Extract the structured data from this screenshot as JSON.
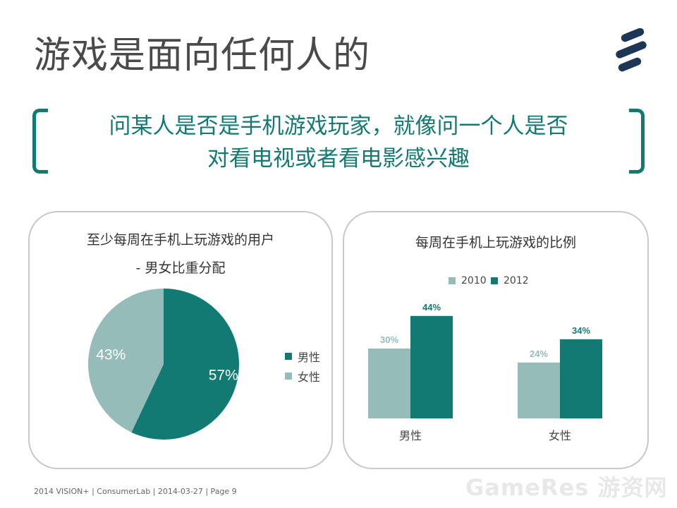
{
  "title": "游戏是面向任何人的",
  "quote": {
    "line1": "问某人是否是手机游戏玩家，就像问一个人是否",
    "line2": "对看电视或者看电影感兴趣"
  },
  "colors": {
    "teal": "#137a73",
    "light": "#95bcb8",
    "title_grey": "#4a4a4a"
  },
  "left_panel": {
    "title_line1": "至少每周在手机上玩游戏的用户",
    "title_line2": "- 男女比重分配",
    "legend": [
      "男性",
      "女性"
    ]
  },
  "right_panel": {
    "title": "每周在手机上玩游戏的比例",
    "legend": [
      "2010",
      "2012"
    ]
  },
  "chart_data": [
    {
      "type": "pie",
      "title": "至少每周在手机上玩游戏的用户 - 男女比重分配",
      "categories": [
        "男性",
        "女性"
      ],
      "values": [
        57,
        43
      ],
      "labels": [
        "57%",
        "43%"
      ],
      "colors": [
        "#137a73",
        "#95bcb8"
      ],
      "legend_position": "right"
    },
    {
      "type": "bar",
      "title": "每周在手机上玩游戏的比例",
      "categories": [
        "男性",
        "女性"
      ],
      "series": [
        {
          "name": "2010",
          "values": [
            30,
            24
          ],
          "labels": [
            "30%",
            "24%"
          ],
          "color": "#95bcb8"
        },
        {
          "name": "2012",
          "values": [
            44,
            34
          ],
          "labels": [
            "44%",
            "34%"
          ],
          "color": "#137a73"
        }
      ],
      "ylim": [
        0,
        50
      ],
      "legend_position": "top"
    }
  ],
  "footer": "2014 VISION+  |  ConsumerLab  |  2014-03-27  |  Page 9",
  "watermark": "GameRes 游资网"
}
